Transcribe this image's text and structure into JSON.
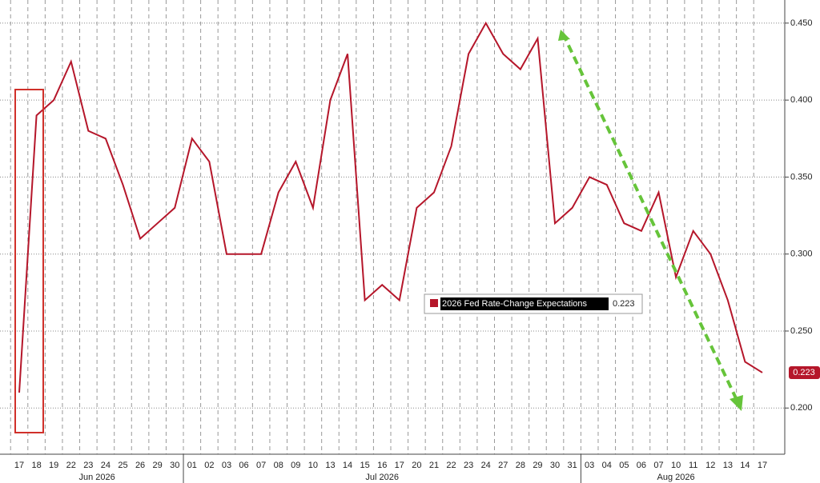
{
  "chart_data": {
    "type": "line",
    "categories": [
      "17",
      "18",
      "19",
      "22",
      "23",
      "24",
      "25",
      "26",
      "29",
      "30",
      "01",
      "02",
      "03",
      "06",
      "07",
      "08",
      "09",
      "10",
      "13",
      "14",
      "15",
      "16",
      "17",
      "20",
      "21",
      "22",
      "23",
      "24",
      "27",
      "28",
      "29",
      "30",
      "31",
      "03",
      "04",
      "05",
      "06",
      "07",
      "10",
      "11",
      "12",
      "13",
      "14",
      "17"
    ],
    "month_labels": [
      "Jun 2026",
      "Jul 2026",
      "Aug 2026"
    ],
    "series": [
      {
        "name": "2026 Fed Rate-Change Expectations",
        "color": "#b5162a",
        "last_label": "0.223",
        "values": [
          0.21,
          0.39,
          0.4,
          0.425,
          0.38,
          0.375,
          0.345,
          0.31,
          0.32,
          0.33,
          0.375,
          0.36,
          0.3,
          0.3,
          0.3,
          0.34,
          0.36,
          0.33,
          0.4,
          0.43,
          0.27,
          0.28,
          0.27,
          0.33,
          0.34,
          0.37,
          0.43,
          0.45,
          0.43,
          0.42,
          0.44,
          0.32,
          0.33,
          0.35,
          0.345,
          0.32,
          0.315,
          0.34,
          0.285,
          0.315,
          0.3,
          0.27,
          0.23,
          0.223
        ]
      }
    ],
    "ylim": [
      0.17,
      0.465
    ],
    "yticks": [
      {
        "value": 0.2,
        "label": "0.200"
      },
      {
        "value": 0.25,
        "label": "0.250"
      },
      {
        "value": 0.3,
        "label": "0.300"
      },
      {
        "value": 0.35,
        "label": "0.350"
      },
      {
        "value": 0.4,
        "label": "0.400"
      },
      {
        "value": 0.45,
        "label": "0.450"
      }
    ],
    "grid": true
  }
}
